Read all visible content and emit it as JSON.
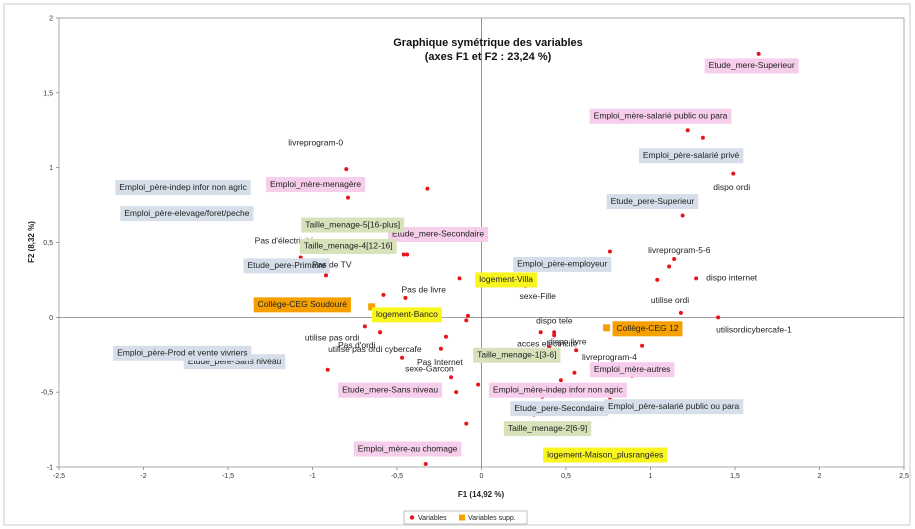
{
  "chart_data": {
    "type": "scatter",
    "title": "Graphique symétrique des variables",
    "subtitle": "(axes F1 et F2 : 23,24 %)",
    "xlabel": "F1 (14,92 %)",
    "ylabel": "F2 (8,32 %)",
    "xlim": [
      -2.5,
      2.5
    ],
    "ylim": [
      -1,
      2
    ],
    "x_ticks": [
      "-2,5",
      "-2",
      "-1,5",
      "-1",
      "-0,5",
      "0",
      "0,5",
      "1",
      "1,5",
      "2",
      "2,5"
    ],
    "y_ticks": [
      "-1",
      "-0,5",
      "0",
      "0,5",
      "1",
      "1,5",
      "2"
    ],
    "grid": false,
    "legend_position": "bottom",
    "legend": [
      "Variables",
      "Variables supp."
    ],
    "colors": {
      "variables": "#e8141a",
      "supp": "#f5a000",
      "blue_box": "#d6dfe9",
      "pink_box": "#f6cdeb",
      "green_box": "#d7e2bb",
      "yellow_box": "#f9f51f",
      "orange_box": "#f5a000"
    },
    "series": [
      {
        "name": "Variables",
        "points": [
          {
            "x": 1.64,
            "y": 1.76,
            "label": "Etude_mere-Superieur",
            "style": "pink"
          },
          {
            "x": 1.22,
            "y": 1.25,
            "label": "Emploi_mère-salarié public ou para",
            "style": "pink"
          },
          {
            "x": 1.31,
            "y": 1.2,
            "label": "Emploi_père-salarié privé",
            "style": "blue"
          },
          {
            "x": 1.49,
            "y": 0.96,
            "label": "dispo ordi",
            "style": "plain"
          },
          {
            "x": 1.19,
            "y": 0.68,
            "label": "Etude_pere-Superieur",
            "style": "blue"
          },
          {
            "x": 0.76,
            "y": 0.44,
            "label": "Etude_mere-Secondaire",
            "style": "pink"
          },
          {
            "x": 1.14,
            "y": 0.39,
            "label": "livreprogram-5-6",
            "style": "plain"
          },
          {
            "x": 1.11,
            "y": 0.34,
            "label": "Emploi_père-employeur",
            "style": "blue"
          },
          {
            "x": 1.27,
            "y": 0.26,
            "label": "dispo internet",
            "style": "plain"
          },
          {
            "x": 0.26,
            "y": 0.21,
            "label": "sexe-Fille",
            "style": "plain"
          },
          {
            "x": 1.04,
            "y": 0.25,
            "label": "logement-Villa",
            "style": "yellow"
          },
          {
            "x": 1.18,
            "y": 0.03,
            "label": "utilise ordi",
            "style": "plain"
          },
          {
            "x": 1.4,
            "y": 0.0,
            "label": "utilisordicybercafe-1",
            "style": "plain"
          },
          {
            "x": 0.43,
            "y": -0.1,
            "label": "dispo tele",
            "style": "plain"
          },
          {
            "x": 0.43,
            "y": -0.12,
            "label": "dispo livre",
            "style": "plain"
          },
          {
            "x": 0.35,
            "y": -0.1,
            "label": "",
            "style": "none"
          },
          {
            "x": 0.95,
            "y": -0.19,
            "label": "livreprogram-4",
            "style": "plain"
          },
          {
            "x": 0.56,
            "y": -0.22,
            "label": "acces electricité",
            "style": "plain"
          },
          {
            "x": 0.4,
            "y": -0.2,
            "label": "Taille_menage-1[3-6]",
            "style": "green"
          },
          {
            "x": 0.55,
            "y": -0.37,
            "label": "",
            "style": "none"
          },
          {
            "x": 0.89,
            "y": -0.39,
            "label": "Emploi_mère-autres",
            "style": "pink"
          },
          {
            "x": 0.47,
            "y": -0.42,
            "label": "Emploi_mère-indep infor non agric",
            "style": "pink"
          },
          {
            "x": -0.02,
            "y": -0.45,
            "label": "",
            "style": "none"
          },
          {
            "x": 0.36,
            "y": -0.53,
            "label": "Etude_pere-Secondaire",
            "style": "blue"
          },
          {
            "x": 0.76,
            "y": -0.55,
            "label": "Emploi_père-salarié public ou para",
            "style": "blue"
          },
          {
            "x": 0.31,
            "y": -0.65,
            "label": "Taille_menage-2[6-9]",
            "style": "green"
          },
          {
            "x": 0.53,
            "y": -0.9,
            "label": "logement-Maison_plusrangées",
            "style": "yellow"
          },
          {
            "x": -0.09,
            "y": -0.71,
            "label": "",
            "style": "none"
          },
          {
            "x": -0.33,
            "y": -0.98,
            "label": "Emploi_mère-au chomage",
            "style": "pink"
          },
          {
            "x": -0.15,
            "y": -0.5,
            "label": "Etude_mere-Sans niveau",
            "style": "pink"
          },
          {
            "x": -0.18,
            "y": -0.4,
            "label": "sexe-Garcon",
            "style": "plain"
          },
          {
            "x": -0.24,
            "y": -0.21,
            "label": "Pas Internet",
            "style": "plain"
          },
          {
            "x": -0.21,
            "y": -0.13,
            "label": "Pas d'ordi",
            "style": "plain"
          },
          {
            "x": -0.47,
            "y": -0.27,
            "label": "utilise pas ordi cybercafe",
            "style": "plain"
          },
          {
            "x": -0.69,
            "y": -0.06,
            "label": "utilise pas ordi",
            "style": "plain"
          },
          {
            "x": -0.91,
            "y": -0.35,
            "label": "Etude_pere-Sans niveau",
            "style": "blue"
          },
          {
            "x": -0.6,
            "y": -0.1,
            "label": "Emploi_père-Prod et vente vivriers",
            "style": "blue"
          },
          {
            "x": -0.09,
            "y": -0.02,
            "label": "",
            "style": "none"
          },
          {
            "x": -0.13,
            "y": 0.26,
            "label": "Pas de livre",
            "style": "plain"
          },
          {
            "x": -0.45,
            "y": 0.13,
            "label": "",
            "style": "none"
          },
          {
            "x": -0.58,
            "y": 0.15,
            "label": "Etude_pere-Primaire",
            "style": "blue"
          },
          {
            "x": -0.92,
            "y": 0.28,
            "label": "Pas de TV",
            "style": "plain"
          },
          {
            "x": -1.07,
            "y": 0.4,
            "label": "Pas d'électricité",
            "style": "plain"
          },
          {
            "x": -0.46,
            "y": 0.42,
            "label": "Taille_menage-4[12-16]",
            "style": "green"
          },
          {
            "x": -0.44,
            "y": 0.42,
            "label": "",
            "style": "none"
          },
          {
            "x": -0.7,
            "y": 0.61,
            "label": "Taille_menage-5[16-plus]",
            "style": "green"
          },
          {
            "x": -1.12,
            "y": 0.9,
            "label": "Emploi_père-elevage/foret/peche",
            "style": "blue"
          },
          {
            "x": -0.79,
            "y": 0.8,
            "label": "Emploi_mère-menagère",
            "style": "pink"
          },
          {
            "x": -0.32,
            "y": 0.86,
            "label": "",
            "style": "none"
          },
          {
            "x": -0.8,
            "y": 0.99,
            "label": "livreprogram-0",
            "style": "plain"
          },
          {
            "x": -1.12,
            "y": 0.9,
            "label": "Emploi_père-indep infor non agric",
            "style": "blue"
          },
          {
            "x": -0.6,
            "y": -0.1,
            "label": "",
            "style": "none"
          },
          {
            "x": -0.08,
            "y": 0.01,
            "label": "logement-Banco",
            "style": "yellow"
          }
        ]
      },
      {
        "name": "Variables supp.",
        "points": [
          {
            "x": -0.65,
            "y": 0.07,
            "label": "Collège-CEG Soudouré",
            "style": "orange"
          },
          {
            "x": 0.74,
            "y": -0.07,
            "label": "Collège-CEG 12",
            "style": "orange"
          }
        ]
      }
    ]
  }
}
